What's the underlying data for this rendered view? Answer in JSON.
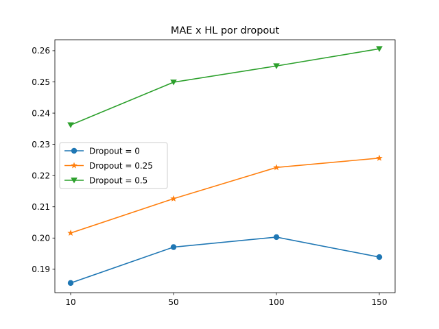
{
  "chart_data": {
    "type": "line",
    "title": "MAE x HL por dropout",
    "xlabel": "",
    "ylabel": "",
    "x_categories": [
      "10",
      "50",
      "100",
      "150"
    ],
    "ylim": [
      0.1825,
      0.2635
    ],
    "yticks": [
      0.19,
      0.2,
      0.21,
      0.22,
      0.23,
      0.24,
      0.25,
      0.26
    ],
    "ytick_labels": [
      "0.19",
      "0.20",
      "0.21",
      "0.22",
      "0.23",
      "0.24",
      "0.25",
      "0.26"
    ],
    "grid": false,
    "legend_position": "center-left",
    "series": [
      {
        "name": "Dropout = 0",
        "values": [
          0.1856,
          0.1971,
          0.2003,
          0.1939
        ],
        "color": "#1f77b4",
        "marker": "circle"
      },
      {
        "name": "Dropout = 0.25",
        "values": [
          0.2016,
          0.2126,
          0.2226,
          0.2256
        ],
        "color": "#ff7f0e",
        "marker": "star"
      },
      {
        "name": "Dropout = 0.5",
        "values": [
          0.2362,
          0.2499,
          0.2551,
          0.2606
        ],
        "color": "#2ca02c",
        "marker": "triangle-down"
      }
    ]
  }
}
